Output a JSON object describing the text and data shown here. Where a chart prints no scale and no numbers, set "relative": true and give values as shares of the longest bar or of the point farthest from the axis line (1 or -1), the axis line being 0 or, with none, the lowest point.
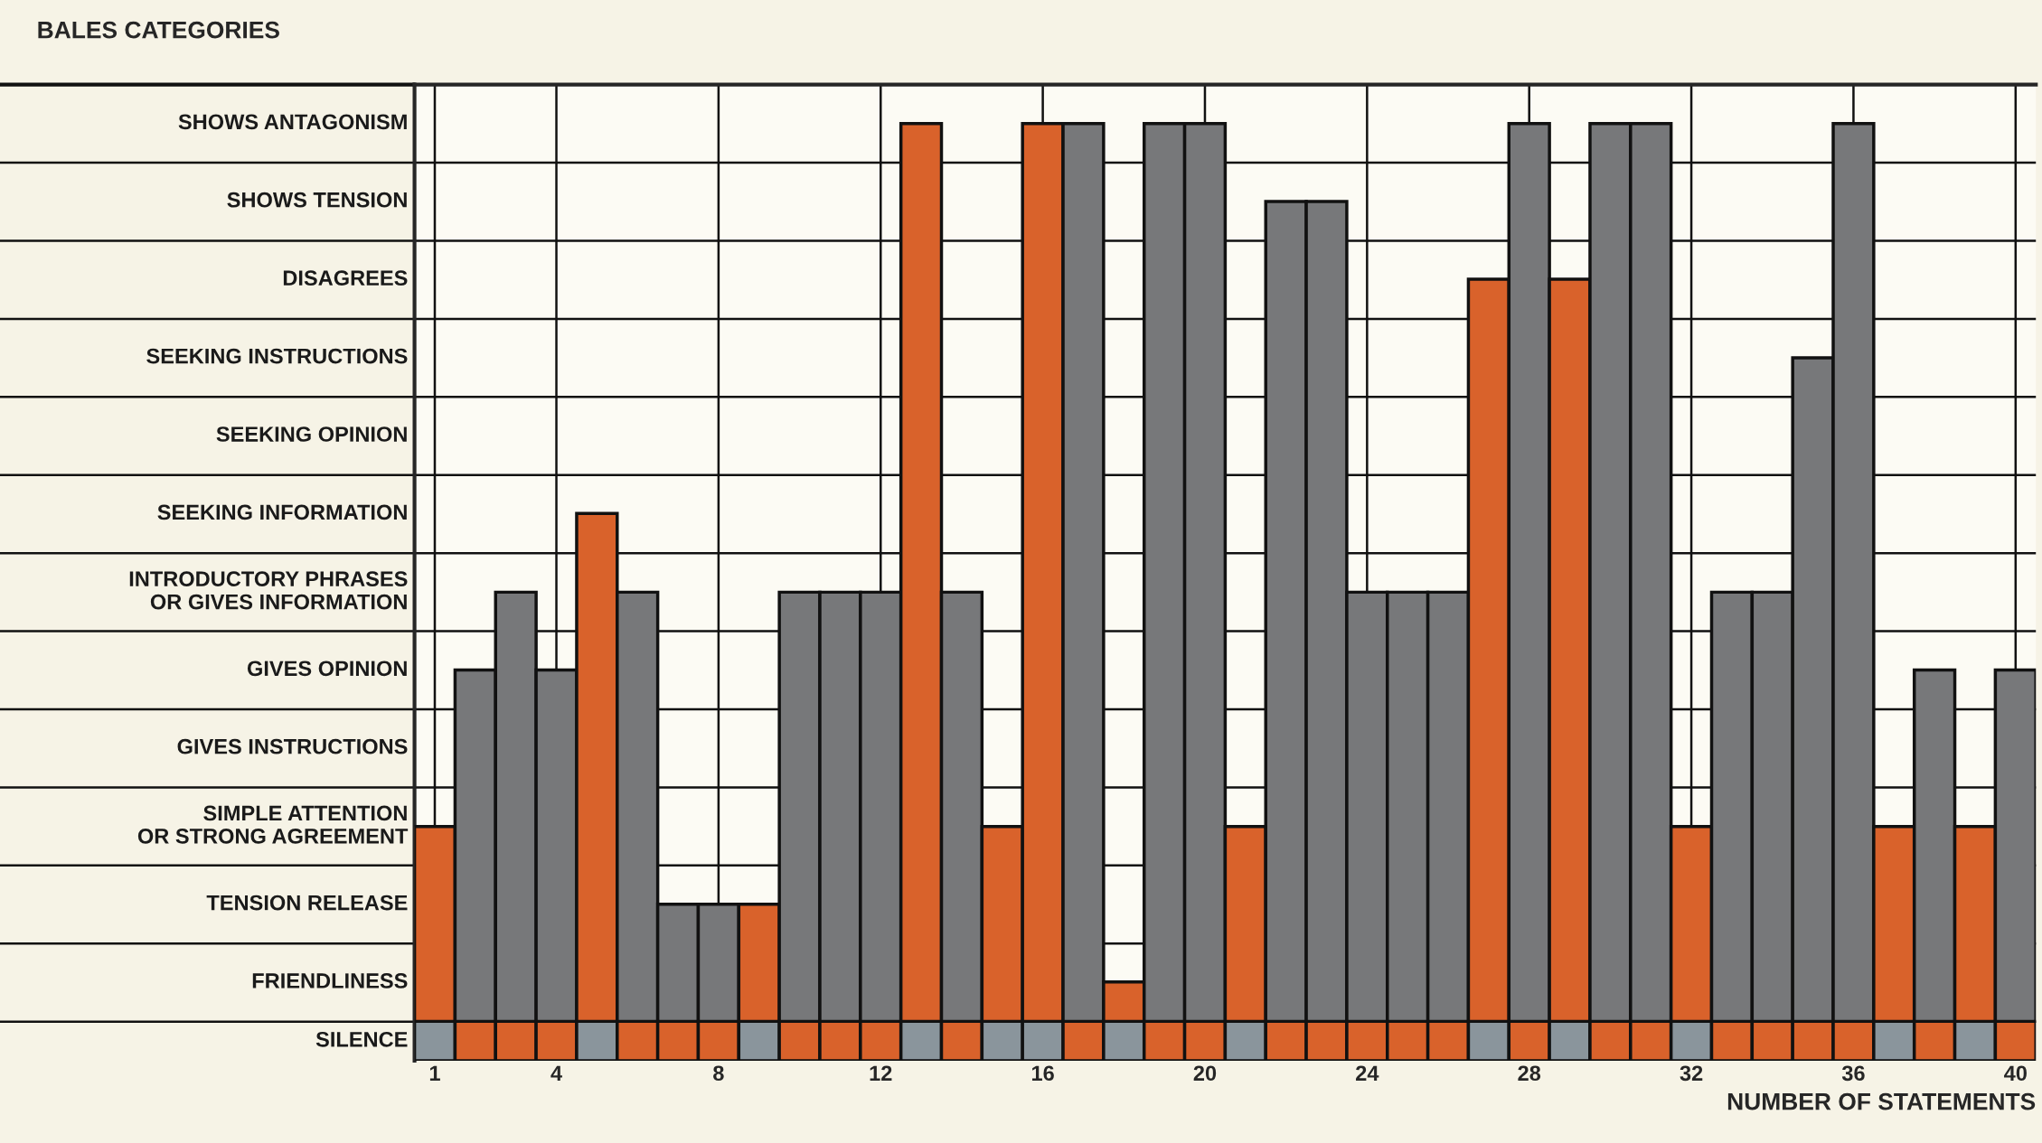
{
  "chart_data": {
    "type": "bar",
    "stacked": true,
    "relative": true,
    "xlabel": "NUMBER OF STATEMENTS",
    "x": [
      1,
      2,
      3,
      4,
      5,
      6,
      7,
      8,
      9,
      10,
      11,
      12,
      13,
      14,
      15,
      16,
      17,
      18,
      19,
      20,
      21,
      22,
      23,
      24,
      25,
      26,
      27,
      28,
      29,
      30,
      31,
      32,
      33,
      34,
      35,
      36,
      37,
      38,
      39,
      40
    ],
    "series": [
      {
        "colors": [
          "#8a959c",
          "#d9622b",
          "#d9622b",
          "#d9622b",
          "#8a959c",
          "#d9622b",
          "#d9622b",
          "#d9622b",
          "#8a959c",
          "#d9622b",
          "#d9622b",
          "#d9622b",
          "#8a959c",
          "#d9622b",
          "#8a959c",
          "#8a959c",
          "#d9622b",
          "#8a959c",
          "#d9622b",
          "#d9622b",
          "#8a959c",
          "#d9622b",
          "#d9622b",
          "#d9622b",
          "#d9622b",
          "#d9622b",
          "#8a959c",
          "#d9622b",
          "#8a959c",
          "#d9622b",
          "#d9622b",
          "#8a959c",
          "#d9622b",
          "#d9622b",
          "#d9622b",
          "#d9622b",
          "#8a959c",
          "#d9622b",
          "#8a959c",
          "#d9622b"
        ],
        "values": [
          0.042,
          0.042,
          0.042,
          0.042,
          0.042,
          0.042,
          0.042,
          0.042,
          0.042,
          0.042,
          0.042,
          0.042,
          0.042,
          0.042,
          0.042,
          0.042,
          0.042,
          0.042,
          0.042,
          0.042,
          0.042,
          0.042,
          0.042,
          0.042,
          0.042,
          0.042,
          0.042,
          0.042,
          0.042,
          0.042,
          0.042,
          0.042,
          0.042,
          0.042,
          0.042,
          0.042,
          0.042,
          0.042,
          0.042,
          0.042
        ]
      },
      {
        "colors": [
          "#d9622b",
          "#77787a",
          "#77787a",
          "#77787a",
          "#d9622b",
          "#77787a",
          "#77787a",
          "#77787a",
          "#d9622b",
          "#77787a",
          "#77787a",
          "#77787a",
          "#d9622b",
          "#77787a",
          "#d9622b",
          "#d9622b",
          "#77787a",
          "#d9622b",
          "#77787a",
          "#77787a",
          "#d9622b",
          "#77787a",
          "#77787a",
          "#77787a",
          "#77787a",
          "#77787a",
          "#d9622b",
          "#77787a",
          "#d9622b",
          "#77787a",
          "#77787a",
          "#d9622b",
          "#77787a",
          "#77787a",
          "#77787a",
          "#77787a",
          "#d9622b",
          "#77787a",
          "#d9622b",
          "#77787a"
        ],
        "values": [
          0.208,
          0.375,
          0.458,
          0.375,
          0.542,
          0.458,
          0.125,
          0.125,
          0.125,
          0.458,
          0.458,
          0.458,
          0.958,
          0.458,
          0.208,
          0.958,
          0.958,
          0.042,
          0.958,
          0.958,
          0.208,
          0.875,
          0.875,
          0.458,
          0.458,
          0.458,
          0.792,
          0.958,
          0.792,
          0.958,
          0.958,
          0.208,
          0.458,
          0.458,
          0.708,
          0.958,
          0.208,
          0.375,
          0.208,
          0.375
        ]
      }
    ],
    "xlim": [
      0.5,
      40.5
    ],
    "xticks": [
      1,
      4,
      8,
      12,
      16,
      20,
      24,
      28,
      32,
      36,
      40
    ],
    "annotations": [
      "BALES CATEGORIES",
      "SHOWS ANTAGONISM",
      "SHOWS TENSION",
      "DISAGREES",
      "SEEKING INSTRUCTIONS",
      "SEEKING OPINION",
      "SEEKING INFORMATION",
      "INTRODUCTORY PHRASES\nOR GIVES INFORMATION",
      "GIVES OPINION",
      "GIVES INSTRUCTIONS",
      "SIMPLE ATTENTION\nOR STRONG AGREEMENT",
      "TENSION RELEASE",
      "FRIENDLINESS",
      "SILENCE"
    ],
    "grid": true
  }
}
